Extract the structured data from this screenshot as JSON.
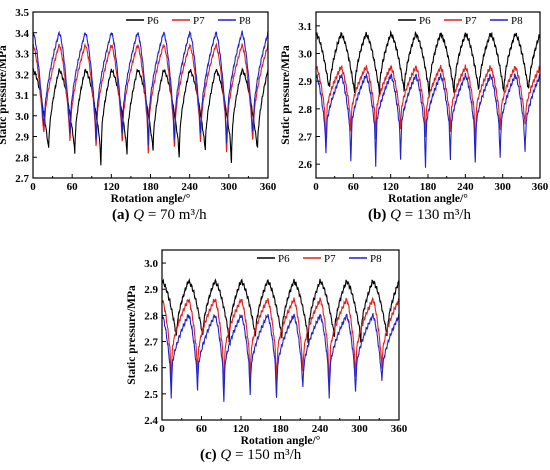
{
  "chart_data": [
    {
      "type": "line",
      "caption": {
        "label": "(a)",
        "variable": "Q",
        "text": " = 70 m³/h"
      },
      "xlabel": "Rotation angle/°",
      "ylabel": "Static pressure/MPa",
      "xlim": [
        0,
        360
      ],
      "ylim": [
        2.7,
        3.5
      ],
      "xticks": [
        0,
        60,
        120,
        180,
        240,
        300,
        360
      ],
      "yticks": [
        2.7,
        2.8,
        2.9,
        3.0,
        3.1,
        3.2,
        3.3,
        3.4,
        3.5
      ],
      "ytick_labels": [
        "2.7",
        "2.8",
        "2.9",
        "3.0",
        "3.1",
        "3.2",
        "3.3",
        "3.4",
        "3.5"
      ],
      "legend_position": "top-right",
      "grid": false,
      "period": 40,
      "series": [
        {
          "name": "P6",
          "color": "#000000",
          "high": 3.22,
          "low": 2.84,
          "dipTime": 0.6,
          "dips": [
            2.84,
            2.82,
            2.76,
            2.82,
            2.84,
            2.8,
            2.84,
            2.77,
            2.84
          ]
        },
        {
          "name": "P7",
          "color": "#e02020",
          "high": 3.34,
          "low": 2.9,
          "dipTime": 0.42,
          "dips": [
            2.9,
            2.86,
            2.83,
            2.86,
            2.8,
            2.83,
            2.86,
            2.8,
            2.86
          ]
        },
        {
          "name": "P8",
          "color": "#2222cc",
          "high": 3.4,
          "low": 2.93,
          "dipTime": 0.42,
          "dips": [
            2.93,
            2.9,
            2.86,
            2.9,
            2.84,
            2.86,
            2.9,
            2.84,
            2.9
          ]
        }
      ]
    },
    {
      "type": "line",
      "caption": {
        "label": "(b)",
        "variable": "Q",
        "text": " = 130 m³/h"
      },
      "xlabel": "Rotation angle/°",
      "ylabel": "Static pressure/MPa",
      "xlim": [
        0,
        360
      ],
      "ylim": [
        2.55,
        3.15
      ],
      "xticks": [
        0,
        60,
        120,
        180,
        240,
        300,
        360
      ],
      "yticks": [
        2.6,
        2.7,
        2.8,
        2.9,
        3.0,
        3.1
      ],
      "ytick_labels": [
        "2.6",
        "2.7",
        "2.8",
        "2.9",
        "3.0",
        "3.1"
      ],
      "legend_position": "top-right",
      "grid": false,
      "period": 40,
      "series": [
        {
          "name": "P6",
          "color": "#000000",
          "high": 3.07,
          "low": 2.86,
          "dipTime": 0.55,
          "dips": [
            2.88,
            2.86,
            2.86,
            2.87,
            2.85,
            2.86,
            2.87,
            2.86,
            2.87
          ]
        },
        {
          "name": "P7",
          "color": "#e02020",
          "high": 2.95,
          "low": 2.76,
          "dipTime": 0.4,
          "dips": [
            2.66,
            2.72,
            2.7,
            2.73,
            2.7,
            2.72,
            2.66,
            2.72,
            2.74
          ]
        },
        {
          "name": "P8",
          "color": "#2222cc",
          "high": 2.92,
          "low": 2.7,
          "dipTime": 0.4,
          "dips": [
            2.64,
            2.61,
            2.6,
            2.62,
            2.59,
            2.62,
            2.6,
            2.62,
            2.64
          ]
        }
      ]
    },
    {
      "type": "line",
      "caption": {
        "label": "(c)",
        "variable": "Q",
        "text": " = 150 m³/h"
      },
      "xlabel": "Rotation angle/°",
      "ylabel": "Static pressure/MPa",
      "xlim": [
        0,
        360
      ],
      "ylim": [
        2.4,
        3.05
      ],
      "xticks": [
        0,
        60,
        120,
        180,
        240,
        300,
        360
      ],
      "yticks": [
        2.4,
        2.5,
        2.6,
        2.7,
        2.8,
        2.9,
        3.0
      ],
      "ytick_labels": [
        "2.4",
        "2.5",
        "2.6",
        "2.7",
        "2.8",
        "2.9",
        "3.0"
      ],
      "legend_position": "top-right",
      "grid": false,
      "period": 40,
      "series": [
        {
          "name": "P6",
          "color": "#000000",
          "high": 2.93,
          "low": 2.72,
          "dipTime": 0.55,
          "dips": [
            2.72,
            2.72,
            2.7,
            2.72,
            2.72,
            2.7,
            2.72,
            2.7,
            2.72
          ]
        },
        {
          "name": "P7",
          "color": "#e02020",
          "high": 2.86,
          "low": 2.62,
          "dipTime": 0.35,
          "dips": [
            2.55,
            2.58,
            2.52,
            2.56,
            2.54,
            2.58,
            2.52,
            2.56,
            2.6
          ]
        },
        {
          "name": "P8",
          "color": "#2222cc",
          "high": 2.8,
          "low": 2.56,
          "dipTime": 0.35,
          "dips": [
            2.49,
            2.52,
            2.47,
            2.5,
            2.48,
            2.52,
            2.48,
            2.5,
            2.55
          ]
        }
      ]
    }
  ]
}
